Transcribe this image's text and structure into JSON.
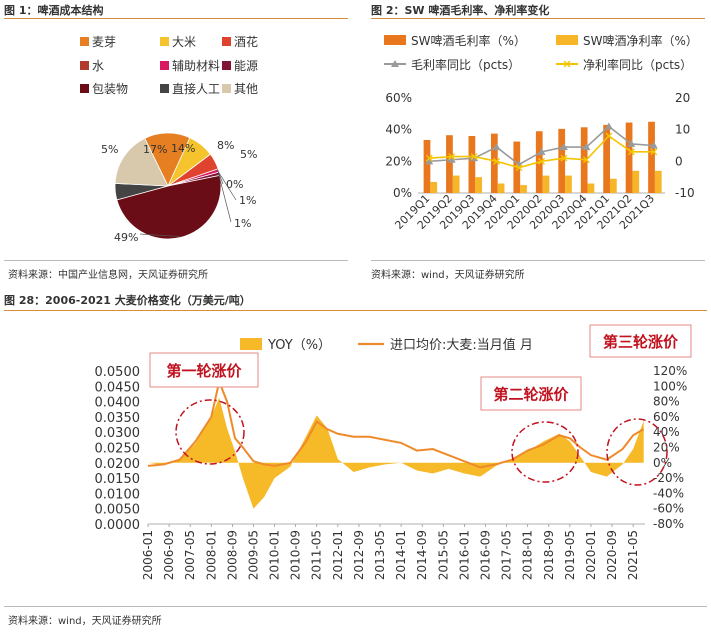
{
  "colors": {
    "rule": "#d98c3a",
    "maiya": "#e67e22",
    "dami": "#f5c32c",
    "jiuhua": "#e0432d",
    "shui": "#b03a2e",
    "fuzhu": "#d81b60",
    "nengyuan": "#7f1434",
    "baozhuang": "#6b0d17",
    "rengong": "#444444",
    "qita": "#d8c9ad",
    "mao": "#e8771e",
    "jing": "#f7b52a",
    "mao_yoy": "#9a9a9a",
    "jing_yoy": "#f5c400",
    "yoy_area": "#f6b928",
    "price_line": "#ef8a2a",
    "callout_text": "#c1121f"
  },
  "fig1": {
    "title": "图 1：啤酒成本结构",
    "source": "资料来源：中国产业信息网，天风证券研究所"
  },
  "fig2": {
    "title": "图 2：SW 啤酒毛利率、净利率变化",
    "source": "资料来源：wind，天风证券研究所"
  },
  "fig28": {
    "title": "图 28：2006-2021 大麦价格变化（万美元/吨）",
    "source": "资料来源：wind，天风证券研究所",
    "callouts": [
      "第一轮涨价",
      "第二轮涨价",
      "第三轮涨价"
    ]
  },
  "chart_data": [
    {
      "type": "pie",
      "legend_placement": "top",
      "slices": [
        {
          "label": "麦芽",
          "value": 14,
          "color": "#e67e22",
          "value_label": "14%"
        },
        {
          "label": "大米",
          "value": 8,
          "color": "#f5c32c",
          "value_label": "8%"
        },
        {
          "label": "酒花",
          "value": 5,
          "color": "#e0432d",
          "value_label": "5%"
        },
        {
          "label": "水",
          "value": 0,
          "color": "#b03a2e",
          "value_label": "0%"
        },
        {
          "label": "辅助材料",
          "value": 1,
          "color": "#d81b60",
          "value_label": "1%"
        },
        {
          "label": "能源",
          "value": 1,
          "color": "#7f1434",
          "value_label": "1%"
        },
        {
          "label": "包装物",
          "value": 49,
          "color": "#6b0d17",
          "value_label": "49%"
        },
        {
          "label": "直接人工",
          "value": 5,
          "color": "#444444",
          "value_label": "5%"
        },
        {
          "label": "其他",
          "value": 17,
          "color": "#d8c9ad",
          "value_label": "17%"
        }
      ]
    },
    {
      "type": "bar",
      "categories": [
        "2019Q1",
        "2019Q2",
        "2019Q3",
        "2019Q4",
        "2020Q1",
        "2020Q2",
        "2020Q3",
        "2020Q4",
        "2021Q1",
        "2021Q2",
        "2021Q3"
      ],
      "left_axis": {
        "ticks": [
          "0%",
          "20%",
          "40%",
          "60%"
        ],
        "range": [
          0,
          60
        ]
      },
      "right_axis": {
        "ticks": [
          "-10",
          "0",
          "10",
          "20"
        ],
        "range": [
          -10,
          20
        ]
      },
      "legend_placement": "top",
      "series": [
        {
          "name": "SW啤酒毛利率（%）",
          "kind": "bar",
          "axis": "left",
          "color": "#e8771e",
          "values": [
            33.5,
            36.5,
            36,
            37.5,
            32.5,
            39,
            40.5,
            41.5,
            43,
            44.5,
            45
          ]
        },
        {
          "name": "SW啤酒净利率（%）",
          "kind": "bar",
          "axis": "left",
          "color": "#f7b52a",
          "values": [
            7,
            11,
            10,
            6,
            5,
            11,
            11,
            6,
            9,
            14,
            14
          ]
        },
        {
          "name": "毛利率同比（pcts）",
          "kind": "line",
          "axis": "right",
          "color": "#9a9a9a",
          "values": [
            0,
            0.5,
            1,
            4.5,
            -1,
            3,
            4.5,
            4.5,
            11,
            5.5,
            5
          ]
        },
        {
          "name": "净利率同比（pcts）",
          "kind": "line",
          "axis": "right",
          "color": "#f5c400",
          "values": [
            1,
            1.5,
            1.5,
            0,
            -2,
            0,
            1,
            0.5,
            8,
            3,
            3
          ]
        }
      ]
    },
    {
      "type": "area",
      "x_ticks": [
        "2006-01",
        "2006-09",
        "2007-05",
        "2008-01",
        "2008-09",
        "2009-05",
        "2010-01",
        "2010-09",
        "2011-05",
        "2012-01",
        "2012-09",
        "2013-05",
        "2014-01",
        "2014-09",
        "2015-05",
        "2016-01",
        "2016-09",
        "2017-05",
        "2018-01",
        "2018-09",
        "2019-05",
        "2020-01",
        "2020-09",
        "2021-05"
      ],
      "left_axis": {
        "ticks": [
          "0.0000",
          "0.0050",
          "0.0100",
          "0.0150",
          "0.0200",
          "0.0250",
          "0.0300",
          "0.0350",
          "0.0400",
          "0.0450",
          "0.0500"
        ],
        "range": [
          0,
          0.05
        ]
      },
      "right_axis": {
        "ticks": [
          "-80%",
          "-60%",
          "-40%",
          "-20%",
          "0%",
          "20%",
          "40%",
          "60%",
          "80%",
          "100%",
          "120%"
        ],
        "range": [
          -80,
          120
        ]
      },
      "legend_placement": "top",
      "series": [
        {
          "name": "YOY（%）",
          "kind": "area",
          "axis": "right",
          "color": "#f6b928",
          "points": [
            [
              "2006-01",
              0
            ],
            [
              "2006-07",
              -3
            ],
            [
              "2007-01",
              5
            ],
            [
              "2007-07",
              25
            ],
            [
              "2008-01",
              60
            ],
            [
              "2008-04",
              85
            ],
            [
              "2008-07",
              45
            ],
            [
              "2008-10",
              15
            ],
            [
              "2009-01",
              -20
            ],
            [
              "2009-05",
              -60
            ],
            [
              "2009-09",
              -45
            ],
            [
              "2010-01",
              -20
            ],
            [
              "2010-07",
              -5
            ],
            [
              "2011-01",
              35
            ],
            [
              "2011-05",
              62
            ],
            [
              "2011-09",
              45
            ],
            [
              "2012-01",
              5
            ],
            [
              "2012-07",
              -12
            ],
            [
              "2013-01",
              -6
            ],
            [
              "2013-07",
              -2
            ],
            [
              "2014-01",
              0
            ],
            [
              "2014-07",
              -10
            ],
            [
              "2015-01",
              -14
            ],
            [
              "2015-07",
              -8
            ],
            [
              "2016-01",
              -14
            ],
            [
              "2016-07",
              -18
            ],
            [
              "2017-01",
              -4
            ],
            [
              "2017-07",
              5
            ],
            [
              "2018-01",
              15
            ],
            [
              "2018-07",
              28
            ],
            [
              "2019-01",
              38
            ],
            [
              "2019-05",
              28
            ],
            [
              "2019-09",
              8
            ],
            [
              "2020-01",
              -12
            ],
            [
              "2020-07",
              -18
            ],
            [
              "2021-01",
              -2
            ],
            [
              "2021-05",
              18
            ],
            [
              "2021-09",
              55
            ]
          ]
        },
        {
          "name": "进口均价:大麦:当月值 月",
          "kind": "line",
          "axis": "left",
          "color": "#ef8a2a",
          "points": [
            [
              "2006-01",
              0.019
            ],
            [
              "2006-07",
              0.0195
            ],
            [
              "2007-01",
              0.021
            ],
            [
              "2007-07",
              0.027
            ],
            [
              "2008-01",
              0.035
            ],
            [
              "2008-04",
              0.0465
            ],
            [
              "2008-07",
              0.04
            ],
            [
              "2008-10",
              0.028
            ],
            [
              "2009-01",
              0.025
            ],
            [
              "2009-05",
              0.0205
            ],
            [
              "2009-09",
              0.0195
            ],
            [
              "2010-01",
              0.019
            ],
            [
              "2010-07",
              0.02
            ],
            [
              "2011-01",
              0.027
            ],
            [
              "2011-05",
              0.0335
            ],
            [
              "2011-09",
              0.031
            ],
            [
              "2012-01",
              0.0295
            ],
            [
              "2012-07",
              0.0285
            ],
            [
              "2013-01",
              0.0285
            ],
            [
              "2013-07",
              0.0275
            ],
            [
              "2014-01",
              0.0265
            ],
            [
              "2014-07",
              0.024
            ],
            [
              "2015-01",
              0.0245
            ],
            [
              "2015-07",
              0.0225
            ],
            [
              "2016-01",
              0.0205
            ],
            [
              "2016-07",
              0.0185
            ],
            [
              "2017-01",
              0.0195
            ],
            [
              "2017-07",
              0.021
            ],
            [
              "2018-01",
              0.024
            ],
            [
              "2018-07",
              0.026
            ],
            [
              "2019-01",
              0.029
            ],
            [
              "2019-05",
              0.028
            ],
            [
              "2019-09",
              0.025
            ],
            [
              "2020-01",
              0.0225
            ],
            [
              "2020-07",
              0.021
            ],
            [
              "2021-01",
              0.0245
            ],
            [
              "2021-05",
              0.029
            ],
            [
              "2021-09",
              0.031
            ]
          ]
        }
      ]
    }
  ]
}
